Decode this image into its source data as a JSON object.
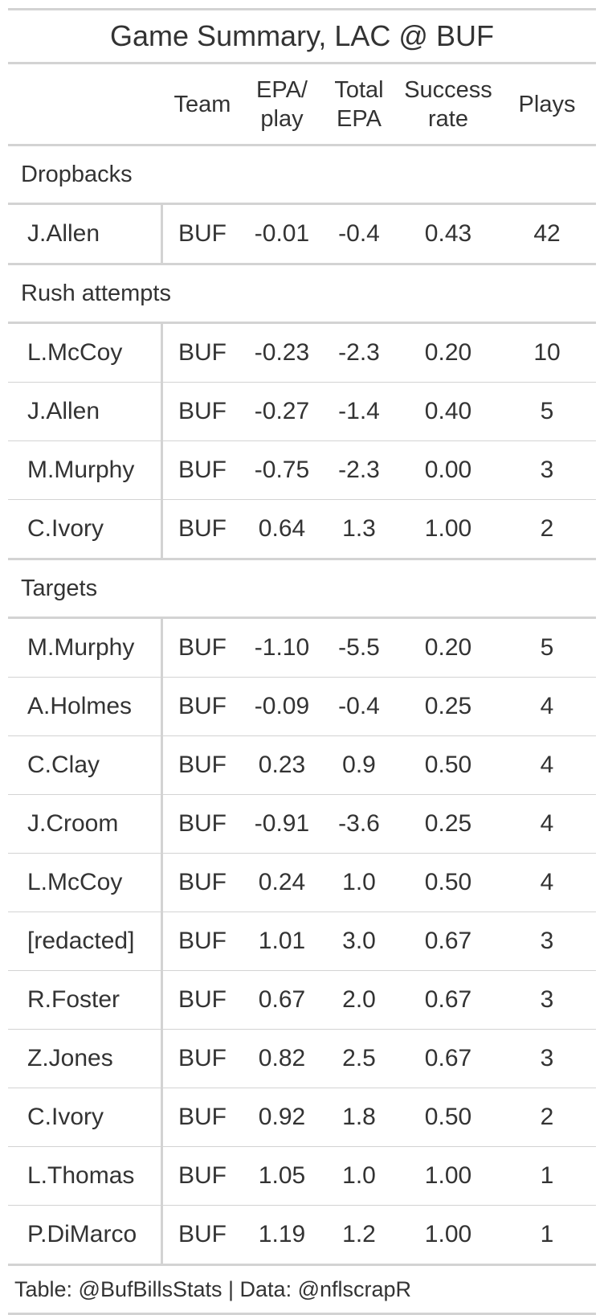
{
  "title": "Game Summary, LAC @ BUF",
  "columns": {
    "team": "Team",
    "epa_l1": "EPA/",
    "epa_l2": "play",
    "total_l1": "Total",
    "total_l2": "EPA",
    "succ_l1": "Success",
    "succ_l2": "rate",
    "plays": "Plays"
  },
  "groups": [
    {
      "label": "Dropbacks",
      "rows": [
        {
          "name": "J.Allen",
          "team": "BUF",
          "epa": "-0.01",
          "total": "-0.4",
          "success": "0.43",
          "plays": "42"
        }
      ]
    },
    {
      "label": "Rush attempts",
      "rows": [
        {
          "name": "L.McCoy",
          "team": "BUF",
          "epa": "-0.23",
          "total": "-2.3",
          "success": "0.20",
          "plays": "10"
        },
        {
          "name": "J.Allen",
          "team": "BUF",
          "epa": "-0.27",
          "total": "-1.4",
          "success": "0.40",
          "plays": "5"
        },
        {
          "name": "M.Murphy",
          "team": "BUF",
          "epa": "-0.75",
          "total": "-2.3",
          "success": "0.00",
          "plays": "3"
        },
        {
          "name": "C.Ivory",
          "team": "BUF",
          "epa": "0.64",
          "total": "1.3",
          "success": "1.00",
          "plays": "2"
        }
      ]
    },
    {
      "label": "Targets",
      "rows": [
        {
          "name": "M.Murphy",
          "team": "BUF",
          "epa": "-1.10",
          "total": "-5.5",
          "success": "0.20",
          "plays": "5"
        },
        {
          "name": "A.Holmes",
          "team": "BUF",
          "epa": "-0.09",
          "total": "-0.4",
          "success": "0.25",
          "plays": "4"
        },
        {
          "name": "C.Clay",
          "team": "BUF",
          "epa": "0.23",
          "total": "0.9",
          "success": "0.50",
          "plays": "4"
        },
        {
          "name": "J.Croom",
          "team": "BUF",
          "epa": "-0.91",
          "total": "-3.6",
          "success": "0.25",
          "plays": "4"
        },
        {
          "name": "L.McCoy",
          "team": "BUF",
          "epa": "0.24",
          "total": "1.0",
          "success": "0.50",
          "plays": "4"
        },
        {
          "name": "[redacted]",
          "team": "BUF",
          "epa": "1.01",
          "total": "3.0",
          "success": "0.67",
          "plays": "3"
        },
        {
          "name": "R.Foster",
          "team": "BUF",
          "epa": "0.67",
          "total": "2.0",
          "success": "0.67",
          "plays": "3"
        },
        {
          "name": "Z.Jones",
          "team": "BUF",
          "epa": "0.82",
          "total": "2.5",
          "success": "0.67",
          "plays": "3"
        },
        {
          "name": "C.Ivory",
          "team": "BUF",
          "epa": "0.92",
          "total": "1.8",
          "success": "0.50",
          "plays": "2"
        },
        {
          "name": "L.Thomas",
          "team": "BUF",
          "epa": "1.05",
          "total": "1.0",
          "success": "1.00",
          "plays": "1"
        },
        {
          "name": "P.DiMarco",
          "team": "BUF",
          "epa": "1.19",
          "total": "1.2",
          "success": "1.00",
          "plays": "1"
        }
      ]
    }
  ],
  "footer": "Table: @BufBillsStats | Data: @nflscrapR",
  "colors": {
    "rule": "#d3d3d3",
    "text": "#333333",
    "background": "#ffffff"
  }
}
